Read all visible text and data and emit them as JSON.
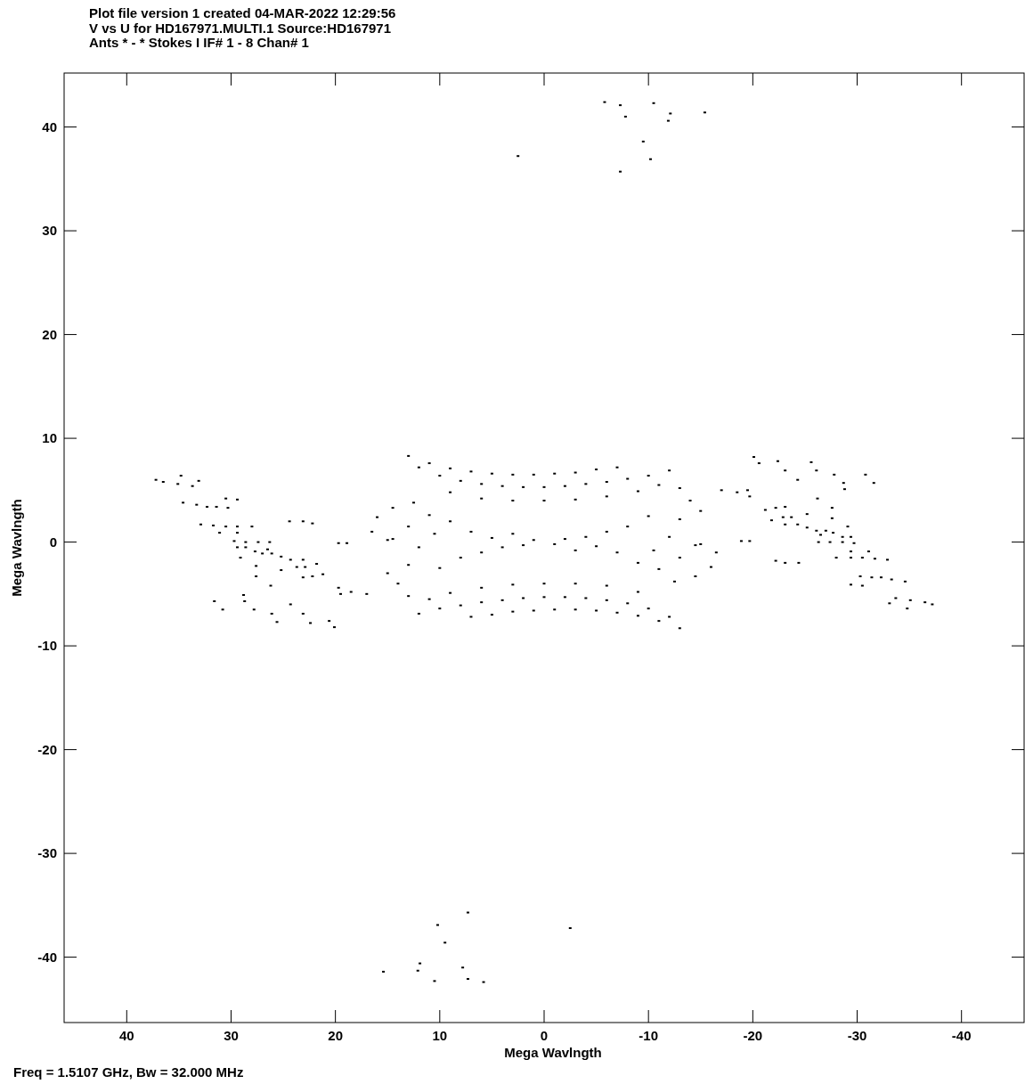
{
  "chart_data": {
    "type": "scatter",
    "title": "Plot file version 1  created 04-MAR-2022 12:29:56",
    "subtitle": "V vs U for HD167971.MULTI.1   Source:HD167971\nAnts * - *    Stokes I  IF# 1 - 8  Chan# 1",
    "xlabel": "Mega Wavlngth",
    "ylabel": "Mega Wavlngth",
    "annotations": [
      "Freq = 1.5107 GHz, Bw = 32.000 MHz"
    ],
    "xlim": [
      46,
      -46
    ],
    "ylim": [
      -46.3,
      45.2
    ],
    "xticks": [
      40,
      30,
      20,
      10,
      0,
      -10,
      -20,
      -30,
      -40
    ],
    "yticks": [
      -40,
      -30,
      -20,
      -10,
      0,
      10,
      20,
      30,
      40
    ],
    "grid": false,
    "marker": "square",
    "series": [
      {
        "color": "#000000",
        "x": [
          -5.8,
          -7.3,
          -10.5,
          -7.8,
          -12.1,
          -11.9,
          -15.4,
          -9.5,
          -10.2,
          -7.3,
          2.5,
          -20.1,
          -20.6,
          -22.4,
          -23.1,
          -24.3,
          -25.6,
          -26.1,
          -27.8,
          -28.7,
          -28.8,
          -30.8,
          -31.6,
          -26.2,
          -27.6,
          -27.6,
          -29.1,
          -21.2,
          -22.2,
          -23.1,
          -22.9,
          -23.7,
          -25.2,
          -21.8,
          -23.1,
          -24.3,
          -25.2,
          -26.1,
          -27.0,
          -27.7,
          -26.5,
          -28.6,
          -29.4,
          -26.3,
          -27.4,
          -28.6,
          -29.7,
          -18.9,
          -19.7,
          -29.4,
          -31.1,
          -28.0,
          -29.4,
          -30.5,
          -31.7,
          -32.9,
          -22.2,
          -23.1,
          -24.4,
          -30.3,
          -31.4,
          -32.3,
          -33.3,
          -34.6,
          -29.4,
          -30.5,
          -33.7,
          -35.1,
          -36.5,
          -37.2,
          -33.1,
          -34.8,
          -19.7,
          13,
          11,
          9,
          7,
          5,
          3,
          1,
          -1,
          -3,
          -5,
          -7,
          12,
          10,
          8,
          6,
          4,
          2,
          0,
          -2,
          -4,
          -6,
          -8,
          -10,
          -12,
          9,
          6,
          3,
          0,
          -3,
          -6,
          -9,
          14.5,
          16,
          16.5,
          15,
          12.5,
          11,
          9,
          13,
          10.5,
          7,
          5,
          3,
          1,
          -11,
          -13,
          -14,
          -15,
          -17,
          -18.5,
          -19.5,
          -13,
          -10,
          -8,
          -6,
          -4,
          -2,
          -12,
          -14.5
        ],
        "values": [
          42.4,
          42.1,
          42.3,
          41.0,
          41.3,
          40.6,
          41.4,
          38.6,
          36.9,
          35.7,
          37.2,
          8.2,
          7.6,
          7.8,
          6.9,
          6.0,
          7.7,
          6.9,
          6.5,
          5.7,
          5.1,
          6.5,
          5.7,
          4.2,
          3.3,
          2.3,
          1.5,
          3.1,
          3.3,
          3.4,
          2.4,
          2.4,
          2.7,
          2.1,
          1.7,
          1.7,
          1.4,
          1.1,
          1.1,
          0.9,
          0.7,
          0.5,
          0.5,
          0,
          0,
          0,
          -0.1,
          0.1,
          0.1,
          -0.9,
          -0.9,
          -1.5,
          -1.5,
          -1.5,
          -1.6,
          -1.7,
          -1.8,
          -2.0,
          -2.0,
          -3.3,
          -3.4,
          -3.4,
          -3.6,
          -3.8,
          -4.1,
          -4.2,
          -5.4,
          -5.6,
          -5.8,
          -6.0,
          -5.9,
          -6.4,
          4.4,
          8.3,
          7.6,
          7.1,
          6.8,
          6.6,
          6.5,
          6.5,
          6.6,
          6.7,
          7.0,
          7.2,
          7.2,
          6.4,
          5.9,
          5.6,
          5.4,
          5.3,
          5.3,
          5.4,
          5.6,
          5.8,
          6.1,
          6.4,
          6.9,
          4.8,
          4.2,
          4.0,
          4.0,
          4.1,
          4.4,
          4.9,
          3.3,
          2.4,
          1.0,
          0.2,
          3.8,
          2.6,
          2,
          1.5,
          0.8,
          1.0,
          0.4,
          0.8,
          0.2,
          5.5,
          5.2,
          4.0,
          3.0,
          5.0,
          4.8,
          5.0,
          2.2,
          2.5,
          1.5,
          1.0,
          0.5,
          0.3,
          0.5,
          -0.3
        ]
      },
      {
        "color": "#000000",
        "x": [
          5.8,
          7.3,
          10.5,
          7.8,
          12.1,
          11.9,
          15.4,
          9.5,
          10.2,
          7.3,
          -2.5,
          20.1,
          20.6,
          22.4,
          23.1,
          24.3,
          25.6,
          26.1,
          27.8,
          28.7,
          28.8,
          30.8,
          31.6,
          26.2,
          27.6,
          27.6,
          29.1,
          21.2,
          22.2,
          23.1,
          22.9,
          23.7,
          25.2,
          21.8,
          23.1,
          24.3,
          25.2,
          26.1,
          27.0,
          27.7,
          26.5,
          28.6,
          29.4,
          26.3,
          27.4,
          28.6,
          29.7,
          18.9,
          19.7,
          29.4,
          31.1,
          28.0,
          29.4,
          30.5,
          31.7,
          32.9,
          22.2,
          23.1,
          24.4,
          30.3,
          31.4,
          32.3,
          33.3,
          34.6,
          29.4,
          30.5,
          33.7,
          35.1,
          36.5,
          37.2,
          33.1,
          34.8,
          19.7,
          -13,
          -11,
          -9,
          -7,
          -5,
          -3,
          -1,
          1,
          3,
          5,
          7,
          -12,
          -10,
          -8,
          -6,
          -4,
          -2,
          0,
          2,
          4,
          6,
          8,
          10,
          12,
          -9,
          -6,
          -3,
          0,
          3,
          6,
          9,
          -14.5,
          -16,
          -16.5,
          -15,
          -12.5,
          -11,
          -9,
          -13,
          -10.5,
          -7,
          -5,
          -3,
          -1,
          11,
          13,
          14,
          15,
          17,
          18.5,
          19.5,
          13,
          10,
          8,
          6,
          4,
          2,
          12,
          14.5
        ],
        "values": [
          -42.4,
          -42.1,
          -42.3,
          -41.0,
          -41.3,
          -40.6,
          -41.4,
          -38.6,
          -36.9,
          -35.7,
          -37.2,
          -8.2,
          -7.6,
          -7.8,
          -6.9,
          -6.0,
          -7.7,
          -6.9,
          -6.5,
          -5.7,
          -5.1,
          -6.5,
          -5.7,
          -4.2,
          -3.3,
          -2.3,
          -1.5,
          -3.1,
          -3.3,
          -3.4,
          -2.4,
          -2.4,
          -2.7,
          -2.1,
          -1.7,
          -1.7,
          -1.4,
          -1.1,
          -1.1,
          -0.9,
          -0.7,
          -0.5,
          -0.5,
          0,
          0,
          0,
          0.1,
          -0.1,
          -0.1,
          0.9,
          0.9,
          1.5,
          1.5,
          1.5,
          1.6,
          1.7,
          1.8,
          2.0,
          2.0,
          3.3,
          3.4,
          3.4,
          3.6,
          3.8,
          4.1,
          4.2,
          5.4,
          5.6,
          5.8,
          6.0,
          5.9,
          6.4,
          -4.4,
          -8.3,
          -7.6,
          -7.1,
          -6.8,
          -6.6,
          -6.5,
          -6.5,
          -6.6,
          -6.7,
          -7.0,
          -7.2,
          -7.2,
          -6.4,
          -5.9,
          -5.6,
          -5.4,
          -5.3,
          -5.3,
          -5.4,
          -5.6,
          -5.8,
          -6.1,
          -6.4,
          -6.9,
          -4.8,
          -4.2,
          -4.0,
          -4.0,
          -4.1,
          -4.4,
          -4.9,
          -3.3,
          -2.4,
          -1.0,
          -0.2,
          -3.8,
          -2.6,
          -2,
          -1.5,
          -0.8,
          -1.0,
          -0.4,
          -0.8,
          -0.2,
          -5.5,
          -5.2,
          -4.0,
          -3.0,
          -5.0,
          -4.8,
          -5.0,
          -2.2,
          -2.5,
          -1.5,
          -1.0,
          -0.5,
          -0.3,
          -0.5,
          0.3
        ]
      }
    ]
  }
}
